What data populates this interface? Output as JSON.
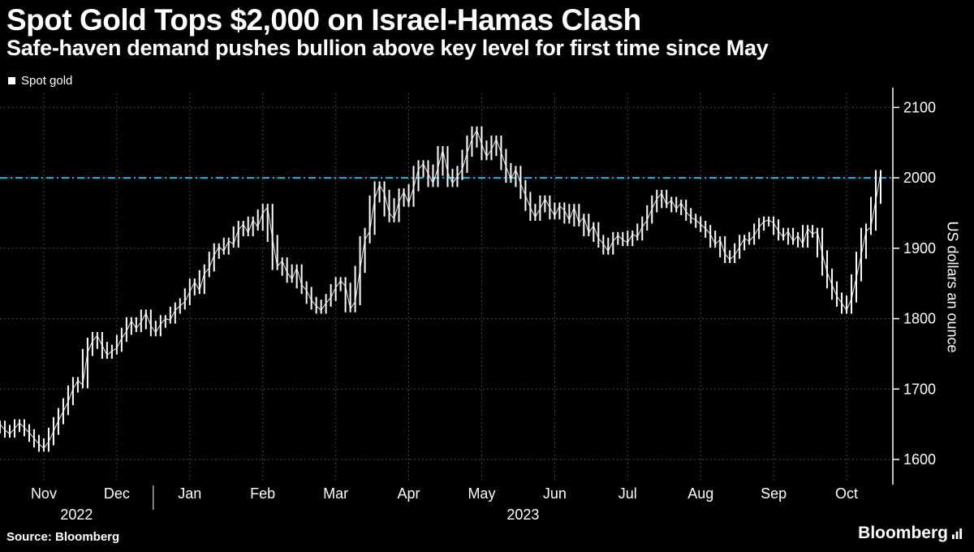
{
  "header": {
    "title": "Spot Gold Tops $2,000 on Israel-Hamas Clash",
    "subtitle": "Safe-haven demand pushes bullion above key level for first time since May"
  },
  "footer": {
    "source": "Source: Bloomberg",
    "logo_text": "Bloomberg"
  },
  "chart_data": {
    "type": "bar",
    "title": "Spot Gold Tops $2,000 on Israel-Hamas Clash",
    "subtitle": "Safe-haven demand pushes bullion above key level for first time since May",
    "ylabel": "US dollars an ounce",
    "yticks": [
      1600,
      1700,
      1800,
      1900,
      2000,
      2100
    ],
    "ylim": [
      1570,
      2120
    ],
    "key_level": 2000,
    "legend_position": "top-left",
    "grid": true,
    "x_months": [
      {
        "label": "Nov",
        "index": 9
      },
      {
        "label": "Dec",
        "index": 24
      },
      {
        "label": "Jan",
        "index": 39
      },
      {
        "label": "Feb",
        "index": 54
      },
      {
        "label": "Mar",
        "index": 69
      },
      {
        "label": "Apr",
        "index": 84
      },
      {
        "label": "May",
        "index": 99
      },
      {
        "label": "Jun",
        "index": 114
      },
      {
        "label": "Jul",
        "index": 129
      },
      {
        "label": "Aug",
        "index": 144
      },
      {
        "label": "Sep",
        "index": 159
      },
      {
        "label": "Oct",
        "index": 174
      }
    ],
    "years": [
      "2022",
      "2023"
    ],
    "colors": {
      "background": "#000000",
      "series": "#ffffff",
      "grid": "#5a5a5a",
      "key_level": "#0fc0e8",
      "text": "#ffffff"
    },
    "series": [
      {
        "name": "Spot gold",
        "values": [
          1650,
          1642,
          1636,
          1644,
          1652,
          1645,
          1638,
          1630,
          1622,
          1616,
          1625,
          1640,
          1655,
          1668,
          1682,
          1700,
          1712,
          1706,
          1752,
          1768,
          1776,
          1762,
          1748,
          1754,
          1758,
          1772,
          1782,
          1797,
          1786,
          1795,
          1808,
          1790,
          1780,
          1792,
          1800,
          1798,
          1812,
          1818,
          1824,
          1838,
          1852,
          1840,
          1864,
          1872,
          1890,
          1902,
          1896,
          1910,
          1906,
          1926,
          1934,
          1922,
          1940,
          1930,
          1950,
          1958,
          1914,
          1874,
          1882,
          1866,
          1856,
          1872,
          1848,
          1840,
          1826,
          1818,
          1812,
          1822,
          1830,
          1844,
          1854,
          1846,
          1814,
          1824,
          1870,
          1912,
          1924,
          1970,
          1990,
          1978,
          1950,
          1942,
          1966,
          1980,
          1964,
          1986,
          2012,
          2020,
          2006,
          1992,
          2014,
          2040,
          2008,
          1992,
          2002,
          2012,
          2035,
          2055,
          2068,
          2048,
          2030,
          2040,
          2055,
          2036,
          2016,
          1998,
          2012,
          1992,
          1975,
          1958,
          1944,
          1956,
          1970,
          1958,
          1946,
          1960,
          1954,
          1940,
          1958,
          1936,
          1944,
          1922,
          1932,
          1914,
          1906,
          1896,
          1910,
          1918,
          1912,
          1908,
          1920,
          1916,
          1930,
          1940,
          1956,
          1970,
          1978,
          1962,
          1968,
          1956,
          1964,
          1952,
          1944,
          1940,
          1934,
          1928,
          1920,
          1906,
          1912,
          1892,
          1884,
          1890,
          1902,
          1914,
          1910,
          1918,
          1930,
          1938,
          1940,
          1936,
          1924,
          1916,
          1924,
          1910,
          1918,
          1906,
          1928,
          1920,
          1924,
          1892,
          1866,
          1848,
          1832,
          1822,
          1812,
          1828,
          1858,
          1890,
          1924,
          1930,
          1968,
          2006
        ]
      }
    ]
  }
}
